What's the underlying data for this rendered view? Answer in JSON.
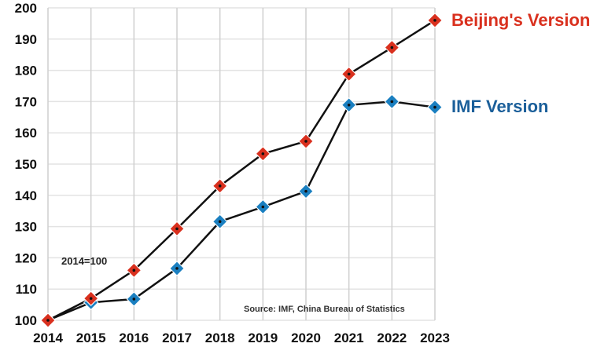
{
  "chart_data": {
    "type": "line",
    "title": "",
    "xlabel": "",
    "ylabel": "",
    "x": [
      2014,
      2015,
      2016,
      2017,
      2018,
      2019,
      2020,
      2021,
      2022,
      2023
    ],
    "x_tick_labels": [
      "2014",
      "2015",
      "2016",
      "2017",
      "2018",
      "2019",
      "2020",
      "2021",
      "2022",
      "2023"
    ],
    "y_tick_labels": [
      "100",
      "110",
      "120",
      "130",
      "140",
      "150",
      "160",
      "170",
      "180",
      "190",
      "200"
    ],
    "ylim": [
      100,
      200
    ],
    "grid": true,
    "series": [
      {
        "name": "Beijing's Version",
        "color": "#d9301e",
        "values": [
          100,
          107,
          116,
          129.3,
          143,
          153.3,
          157.3,
          178.8,
          187.3,
          196
        ]
      },
      {
        "name": "IMF Version",
        "color": "#1a7fc0",
        "values": [
          100,
          105.7,
          106.8,
          116.6,
          131.6,
          136.3,
          141.3,
          168.9,
          170,
          168.2
        ]
      }
    ],
    "annotations": [
      "2014=100",
      "Source: IMF, China Bureau of Statistics"
    ],
    "legend_placement": "right, at series ends"
  }
}
